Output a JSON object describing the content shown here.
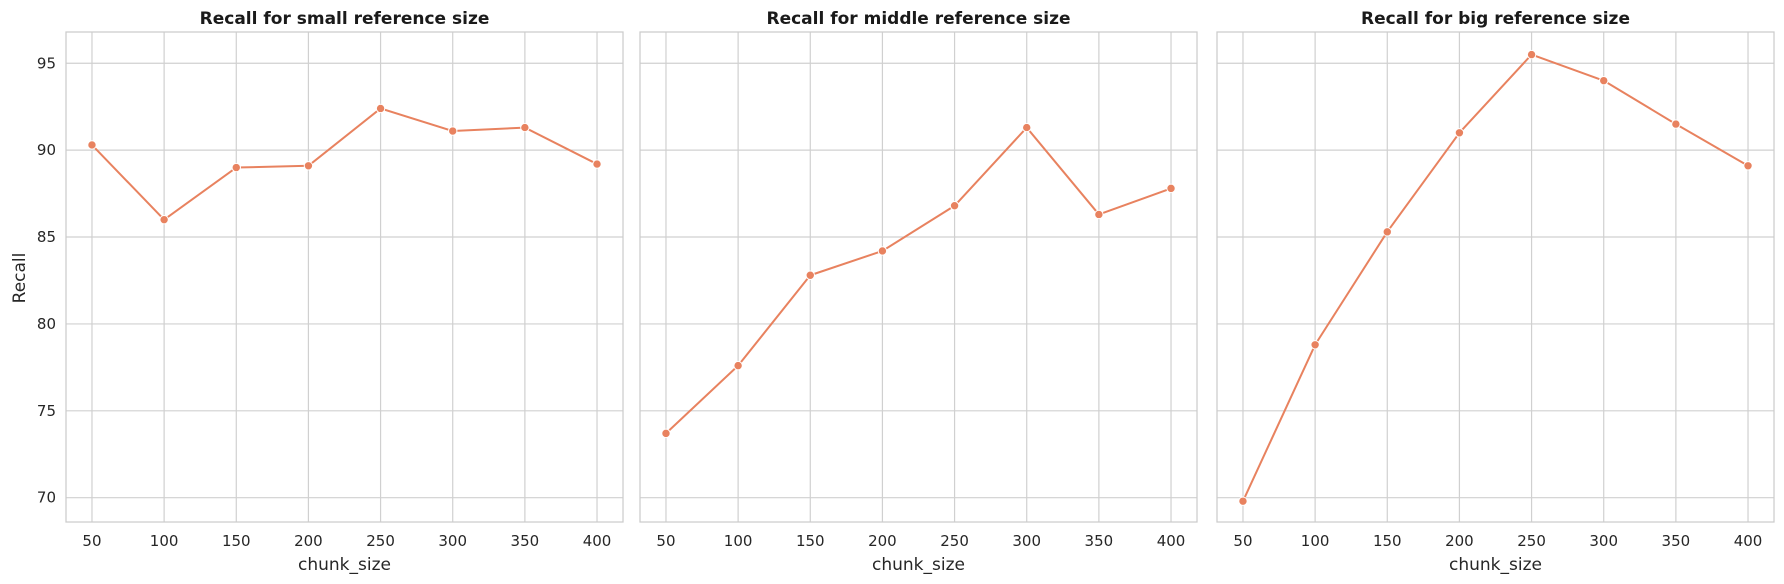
{
  "colors": {
    "series": "#e8825f",
    "grid": "#d0d0d0",
    "frame": "#cccccc",
    "text": "#262626"
  },
  "shared": {
    "ylabel": "Recall",
    "xlabel": "chunk_size",
    "xticks": [
      50,
      100,
      150,
      200,
      250,
      300,
      350,
      400
    ],
    "yticks": [
      70,
      75,
      80,
      85,
      90,
      95
    ],
    "xlim": [
      32,
      418
    ],
    "ylim": [
      68.6,
      96.8
    ]
  },
  "chart_data": [
    {
      "type": "line",
      "title": "Recall for small reference size",
      "xlabel": "chunk_size",
      "ylabel": "Recall",
      "grid": true,
      "x": [
        50,
        100,
        150,
        200,
        250,
        300,
        350,
        400
      ],
      "series": [
        {
          "values": [
            90.3,
            86.0,
            89.0,
            89.1,
            92.4,
            91.1,
            91.3,
            89.2
          ]
        }
      ]
    },
    {
      "type": "line",
      "title": "Recall for middle reference size",
      "xlabel": "chunk_size",
      "ylabel": "",
      "grid": true,
      "x": [
        50,
        100,
        150,
        200,
        250,
        300,
        350,
        400
      ],
      "series": [
        {
          "values": [
            73.7,
            77.6,
            82.8,
            84.2,
            86.8,
            91.3,
            86.3,
            87.8
          ]
        }
      ]
    },
    {
      "type": "line",
      "title": "Recall for big reference size",
      "xlabel": "chunk_size",
      "ylabel": "",
      "grid": true,
      "x": [
        50,
        100,
        150,
        200,
        250,
        300,
        350,
        400
      ],
      "series": [
        {
          "values": [
            69.8,
            78.8,
            85.3,
            91.0,
            95.5,
            94.0,
            91.5,
            89.1
          ]
        }
      ]
    }
  ]
}
